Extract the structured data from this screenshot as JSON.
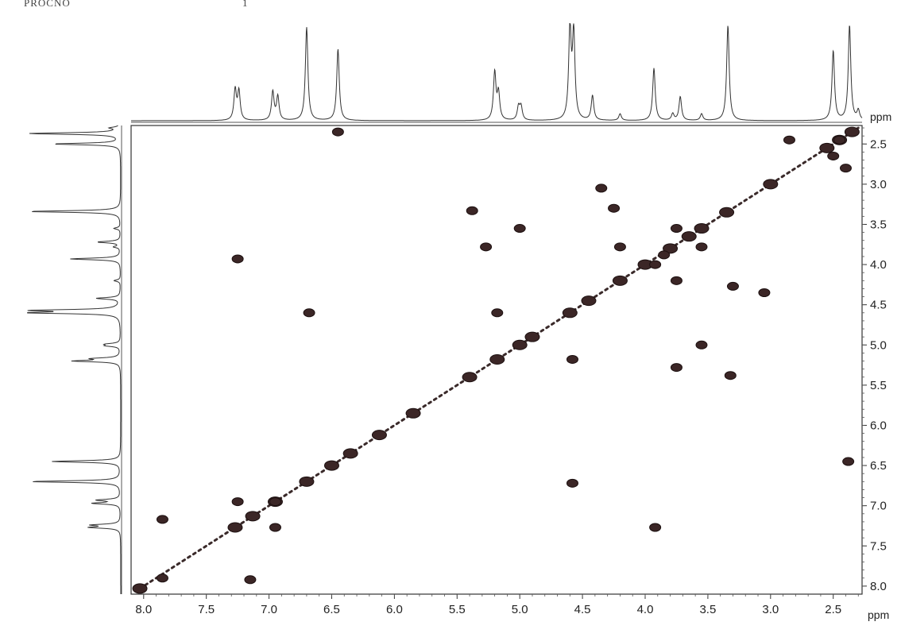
{
  "header": {
    "fragment": "PROCNO",
    "mark": "1"
  },
  "chart_data": {
    "type": "scatter",
    "subtype": "2D NMR COSY contour plot",
    "x_unit": "ppm",
    "y_unit": "ppm",
    "xlim": [
      8.1,
      2.27
    ],
    "ylim": [
      2.27,
      8.1
    ],
    "x_ticks": [
      "8.0",
      "7.5",
      "7.0",
      "6.5",
      "6.0",
      "5.5",
      "5.0",
      "4.5",
      "4.0",
      "3.5",
      "3.0",
      "2.5"
    ],
    "y_ticks": [
      "2.5",
      "3.0",
      "3.5",
      "4.0",
      "4.5",
      "5.0",
      "5.5",
      "6.0",
      "6.5",
      "7.0",
      "7.5",
      "8.0"
    ],
    "diagonal": {
      "from": [
        8.03,
        8.03
      ],
      "to": [
        2.3,
        2.3
      ]
    },
    "diagonal_peaks": [
      [
        8.03,
        8.03
      ],
      [
        7.27,
        7.27
      ],
      [
        7.13,
        7.13
      ],
      [
        6.95,
        6.95
      ],
      [
        6.7,
        6.7
      ],
      [
        6.5,
        6.5
      ],
      [
        6.35,
        6.35
      ],
      [
        6.12,
        6.12
      ],
      [
        5.85,
        5.85
      ],
      [
        5.4,
        5.4
      ],
      [
        5.18,
        5.18
      ],
      [
        5.0,
        5.0
      ],
      [
        4.9,
        4.9
      ],
      [
        4.6,
        4.6
      ],
      [
        4.45,
        4.45
      ],
      [
        4.2,
        4.2
      ],
      [
        4.0,
        4.0
      ],
      [
        3.8,
        3.8
      ],
      [
        3.65,
        3.65
      ],
      [
        3.55,
        3.55
      ],
      [
        3.35,
        3.35
      ],
      [
        3.0,
        3.0
      ],
      [
        2.55,
        2.55
      ],
      [
        2.45,
        2.45
      ],
      [
        2.35,
        2.35
      ]
    ],
    "cross_peaks": [
      [
        6.45,
        2.35
      ],
      [
        2.85,
        2.45
      ],
      [
        2.5,
        2.65
      ],
      [
        2.45,
        2.45
      ],
      [
        2.4,
        2.8
      ],
      [
        4.35,
        3.05
      ],
      [
        4.25,
        3.3
      ],
      [
        5.38,
        3.33
      ],
      [
        5.0,
        3.55
      ],
      [
        5.27,
        3.78
      ],
      [
        3.75,
        3.55
      ],
      [
        3.55,
        3.78
      ],
      [
        4.2,
        3.78
      ],
      [
        3.85,
        3.88
      ],
      [
        3.92,
        4.0
      ],
      [
        3.75,
        4.2
      ],
      [
        3.3,
        4.27
      ],
      [
        3.05,
        4.35
      ],
      [
        5.18,
        4.6
      ],
      [
        6.68,
        4.6
      ],
      [
        7.25,
        3.93
      ],
      [
        3.55,
        5.0
      ],
      [
        4.58,
        5.18
      ],
      [
        3.75,
        5.28
      ],
      [
        3.32,
        5.38
      ],
      [
        4.58,
        6.72
      ],
      [
        2.38,
        6.45
      ],
      [
        7.25,
        6.95
      ],
      [
        6.95,
        7.27
      ],
      [
        3.92,
        7.27
      ],
      [
        7.85,
        7.17
      ],
      [
        7.85,
        7.9
      ],
      [
        7.15,
        7.92
      ],
      [
        6.95,
        6.95
      ]
    ],
    "projection_peaks": [
      {
        "ppm": 7.27,
        "height": 0.32
      },
      {
        "ppm": 7.24,
        "height": 0.3
      },
      {
        "ppm": 6.97,
        "height": 0.3
      },
      {
        "ppm": 6.93,
        "height": 0.25
      },
      {
        "ppm": 6.7,
        "height": 0.98
      },
      {
        "ppm": 6.45,
        "height": 0.75
      },
      {
        "ppm": 5.2,
        "height": 0.5
      },
      {
        "ppm": 5.17,
        "height": 0.28
      },
      {
        "ppm": 5.01,
        "height": 0.14
      },
      {
        "ppm": 4.99,
        "height": 0.14
      },
      {
        "ppm": 4.6,
        "height": 0.95
      },
      {
        "ppm": 4.57,
        "height": 0.9
      },
      {
        "ppm": 4.42,
        "height": 0.26
      },
      {
        "ppm": 4.2,
        "height": 0.07
      },
      {
        "ppm": 3.93,
        "height": 0.55
      },
      {
        "ppm": 3.78,
        "height": 0.07
      },
      {
        "ppm": 3.72,
        "height": 0.25
      },
      {
        "ppm": 3.55,
        "height": 0.07
      },
      {
        "ppm": 3.34,
        "height": 1.0
      },
      {
        "ppm": 2.5,
        "height": 0.73
      },
      {
        "ppm": 2.37,
        "height": 1.0
      },
      {
        "ppm": 2.3,
        "height": 0.1
      }
    ]
  }
}
